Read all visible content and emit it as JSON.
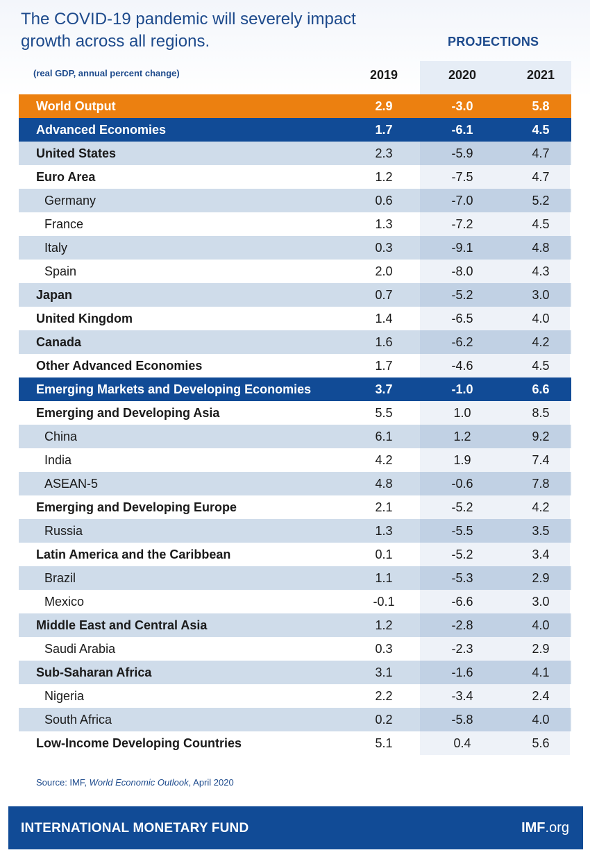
{
  "header": {
    "title": "The COVID-19 pandemic will severely impact growth across all regions.",
    "projections_label": "PROJECTIONS",
    "unit_note": "(real GDP, annual percent change)"
  },
  "chart_data": {
    "type": "table",
    "title": "The COVID-19 pandemic will severely impact growth across all regions.",
    "columns": [
      "2019",
      "2020",
      "2021"
    ],
    "projection_columns": [
      "2020",
      "2021"
    ],
    "rows": [
      {
        "label": "World Output",
        "style": "world",
        "values": [
          "2.9",
          "-3.0",
          "5.8"
        ]
      },
      {
        "label": "Advanced Economies",
        "style": "group",
        "values": [
          "1.7",
          "-6.1",
          "4.5"
        ]
      },
      {
        "label": "United States",
        "style": "bold",
        "values": [
          "2.3",
          "-5.9",
          "4.7"
        ]
      },
      {
        "label": "Euro Area",
        "style": "bold",
        "values": [
          "1.2",
          "-7.5",
          "4.7"
        ]
      },
      {
        "label": "Germany",
        "style": "indent",
        "values": [
          "0.6",
          "-7.0",
          "5.2"
        ]
      },
      {
        "label": "France",
        "style": "indent",
        "values": [
          "1.3",
          "-7.2",
          "4.5"
        ]
      },
      {
        "label": "Italy",
        "style": "indent",
        "values": [
          "0.3",
          "-9.1",
          "4.8"
        ]
      },
      {
        "label": "Spain",
        "style": "indent",
        "values": [
          "2.0",
          "-8.0",
          "4.3"
        ]
      },
      {
        "label": "Japan",
        "style": "bold",
        "values": [
          "0.7",
          "-5.2",
          "3.0"
        ]
      },
      {
        "label": "United Kingdom",
        "style": "bold",
        "values": [
          "1.4",
          "-6.5",
          "4.0"
        ]
      },
      {
        "label": "Canada",
        "style": "bold",
        "values": [
          "1.6",
          "-6.2",
          "4.2"
        ]
      },
      {
        "label": "Other Advanced Economies",
        "style": "bold",
        "values": [
          "1.7",
          "-4.6",
          "4.5"
        ]
      },
      {
        "label": "Emerging Markets and Developing Economies",
        "style": "group",
        "values": [
          "3.7",
          "-1.0",
          "6.6"
        ]
      },
      {
        "label": "Emerging and Developing Asia",
        "style": "bold",
        "values": [
          "5.5",
          "1.0",
          "8.5"
        ]
      },
      {
        "label": "China",
        "style": "indent",
        "values": [
          "6.1",
          "1.2",
          "9.2"
        ]
      },
      {
        "label": "India",
        "style": "indent",
        "values": [
          "4.2",
          "1.9",
          "7.4"
        ]
      },
      {
        "label": "ASEAN-5",
        "style": "indent",
        "values": [
          "4.8",
          "-0.6",
          "7.8"
        ]
      },
      {
        "label": "Emerging and Developing Europe",
        "style": "bold",
        "values": [
          "2.1",
          "-5.2",
          "4.2"
        ]
      },
      {
        "label": "Russia",
        "style": "indent",
        "values": [
          "1.3",
          "-5.5",
          "3.5"
        ]
      },
      {
        "label": "Latin America and the Caribbean",
        "style": "bold",
        "values": [
          "0.1",
          "-5.2",
          "3.4"
        ]
      },
      {
        "label": "Brazil",
        "style": "indent",
        "values": [
          "1.1",
          "-5.3",
          "2.9"
        ]
      },
      {
        "label": "Mexico",
        "style": "indent",
        "values": [
          "-0.1",
          "-6.6",
          "3.0"
        ]
      },
      {
        "label": "Middle East and Central Asia",
        "style": "bold",
        "values": [
          "1.2",
          "-2.8",
          "4.0"
        ]
      },
      {
        "label": "Saudi Arabia",
        "style": "indent",
        "values": [
          "0.3",
          "-2.3",
          "2.9"
        ]
      },
      {
        "label": "Sub-Saharan Africa",
        "style": "bold",
        "values": [
          "3.1",
          "-1.6",
          "4.1"
        ]
      },
      {
        "label": "Nigeria",
        "style": "indent",
        "values": [
          "2.2",
          "-3.4",
          "2.4"
        ]
      },
      {
        "label": "South Africa",
        "style": "indent",
        "values": [
          "0.2",
          "-5.8",
          "4.0"
        ]
      },
      {
        "label": "Low-Income Developing Countries",
        "style": "bold",
        "values": [
          "5.1",
          "0.4",
          "5.6"
        ]
      }
    ]
  },
  "source": {
    "prefix": "Source: IMF, ",
    "publication": "World Economic Outlook",
    "suffix": ", April 2020"
  },
  "footer": {
    "org_name": "INTERNATIONAL MONETARY FUND",
    "site_bold": "IMF",
    "site_suffix": ".org"
  },
  "colors": {
    "brand_blue": "#114b96",
    "accent_orange": "#ec8010",
    "band_light": "#cfdcea"
  }
}
